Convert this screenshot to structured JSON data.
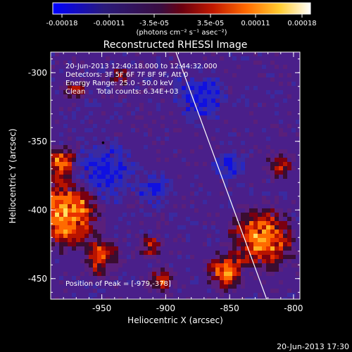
{
  "colorbar": {
    "tick_labels": [
      "-0.00018",
      "-0.00011",
      "-3.5e-05",
      "3.5e-05",
      "0.00011",
      "0.00018"
    ],
    "units": "(photons cm⁻² s⁻¹ asec⁻²)",
    "colors": [
      "#0000ff",
      "#1a0a5a",
      "#3a1060",
      "#7a0010",
      "#cc2000",
      "#ff7000",
      "#ffd040",
      "#ffffff"
    ]
  },
  "chart_data": {
    "type": "heatmap",
    "title": "Reconstructed RHESSI Image",
    "xlabel": "Heliocentric X (arcsec)",
    "ylabel": "Heliocentric Y (arcsec)",
    "xlim": [
      -990,
      -795
    ],
    "ylim": [
      -465,
      -285
    ],
    "xticks": [
      -950,
      -900,
      -850,
      -800
    ],
    "xtick_labels": [
      "-950",
      "-900",
      "-850",
      "-800"
    ],
    "yticks": [
      -300,
      -350,
      -400,
      -450
    ],
    "ytick_labels": [
      "-300",
      "-350",
      "-400",
      "-450"
    ],
    "annotations": [
      "20-Jun-2013 12:40:18.000 to 12:44:32.000",
      "Detectors: 3F 5F 6F 7F 8F 9F, Att 0",
      "Energy Range: 25.0 - 50.0 keV",
      "Clean     Total counts: 6.34E+03",
      "Position of Peak = [-979,-378]"
    ],
    "limb_line": {
      "x": [
        -892,
        -821
      ],
      "y": [
        -285,
        -465
      ]
    },
    "peak": {
      "x": -979,
      "y": -378
    }
  },
  "footer": {
    "timestamp": "20-Jun-2013 17:30"
  }
}
